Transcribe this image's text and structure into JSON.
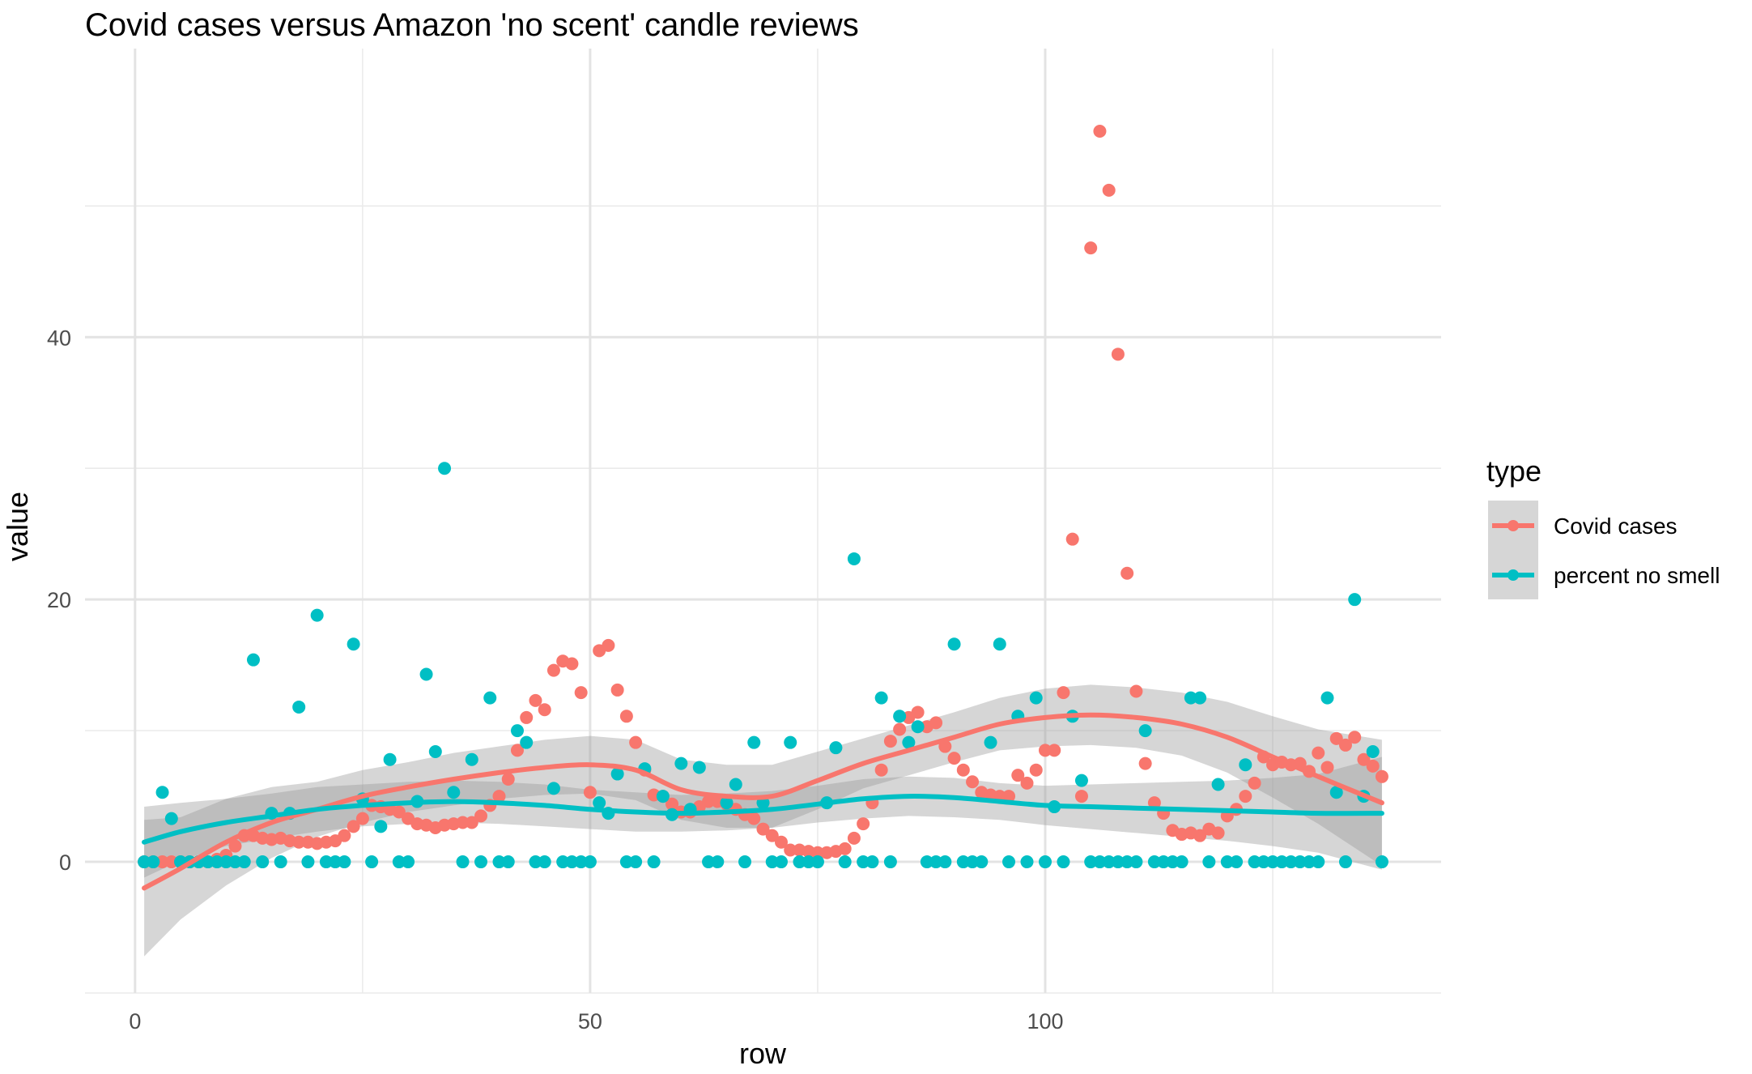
{
  "chart_data": {
    "type": "scatter",
    "title": "Covid cases versus Amazon 'no scent' candle reviews",
    "xlabel": "row",
    "ylabel": "value",
    "xlim": [
      -5.5,
      143.5
    ],
    "ylim": [
      -10,
      62
    ],
    "x_ticks": [
      0,
      50,
      100
    ],
    "x_minor_ticks": [
      25,
      75,
      125
    ],
    "y_ticks": [
      0,
      20,
      40
    ],
    "y_minor_ticks": [
      -10,
      10,
      30,
      50
    ],
    "grid": true,
    "legend": {
      "title": "type",
      "position": "right",
      "entries": [
        "Covid cases",
        "percent no smell"
      ]
    },
    "series": [
      {
        "name": "Covid cases",
        "color": "#F8766D",
        "x": [
          1,
          2,
          3,
          4,
          5,
          6,
          7,
          8,
          9,
          10,
          11,
          12,
          13,
          14,
          15,
          16,
          17,
          18,
          19,
          20,
          21,
          22,
          23,
          24,
          25,
          26,
          27,
          28,
          29,
          30,
          31,
          32,
          33,
          34,
          35,
          36,
          37,
          38,
          39,
          40,
          41,
          42,
          43,
          44,
          45,
          46,
          47,
          48,
          49,
          50,
          51,
          52,
          53,
          54,
          55,
          56,
          57,
          58,
          59,
          60,
          61,
          62,
          63,
          64,
          65,
          66,
          67,
          68,
          69,
          70,
          71,
          72,
          73,
          74,
          75,
          76,
          77,
          78,
          79,
          80,
          81,
          82,
          83,
          84,
          85,
          86,
          87,
          88,
          89,
          90,
          91,
          92,
          93,
          94,
          95,
          96,
          97,
          98,
          99,
          100,
          101,
          102,
          103,
          104,
          105,
          106,
          107,
          108,
          109,
          110,
          111,
          112,
          113,
          114,
          115,
          116,
          117,
          118,
          119,
          120,
          121,
          122,
          123,
          124,
          125,
          126,
          127,
          128,
          129,
          130,
          131,
          132,
          133,
          134,
          135,
          136,
          137
        ],
        "y": [
          0,
          0,
          0,
          0,
          0,
          0,
          0,
          0,
          0.2,
          0.5,
          1.2,
          2.0,
          2.0,
          1.8,
          1.7,
          1.8,
          1.6,
          1.5,
          1.5,
          1.4,
          1.5,
          1.6,
          2.0,
          2.7,
          3.3,
          4.3,
          4.2,
          4.0,
          3.8,
          3.3,
          2.9,
          2.8,
          2.6,
          2.8,
          2.9,
          3.0,
          3.0,
          3.5,
          4.3,
          5.0,
          6.3,
          8.5,
          11.0,
          12.3,
          11.6,
          14.6,
          15.3,
          15.1,
          12.9,
          5.3,
          16.1,
          16.5,
          13.1,
          11.1,
          9.1,
          7.0,
          5.1,
          5.0,
          4.4,
          3.8,
          3.8,
          4.2,
          4.6,
          4.6,
          4.4,
          4.0,
          3.6,
          3.3,
          2.5,
          2.0,
          1.5,
          0.9,
          0.9,
          0.8,
          0.7,
          0.7,
          0.8,
          1.0,
          1.8,
          2.9,
          4.5,
          7.0,
          9.2,
          10.1,
          11.0,
          11.4,
          10.3,
          10.6,
          8.8,
          7.9,
          7.0,
          6.1,
          5.3,
          5.1,
          5.0,
          5.0,
          6.6,
          6.0,
          7.0,
          8.5,
          8.5,
          12.9,
          24.6,
          5.0,
          46.8,
          55.7,
          51.2,
          38.7,
          22.0,
          13.0,
          7.5,
          4.5,
          3.7,
          2.4,
          2.1,
          2.2,
          2.0,
          2.5,
          2.2,
          3.5,
          4.0,
          5.0,
          6.0,
          8.0,
          7.4,
          7.6,
          7.4,
          7.5,
          6.9,
          8.3,
          7.2,
          9.4,
          8.9,
          9.5,
          7.8,
          7.3,
          6.5
        ]
      },
      {
        "name": "percent no smell",
        "color": "#00BFC4",
        "x": [
          1,
          2,
          3,
          4,
          5,
          6,
          7,
          8,
          9,
          10,
          11,
          12,
          13,
          14,
          15,
          16,
          17,
          18,
          19,
          20,
          21,
          22,
          23,
          24,
          25,
          26,
          27,
          28,
          29,
          30,
          31,
          32,
          33,
          34,
          35,
          36,
          37,
          38,
          39,
          40,
          41,
          42,
          43,
          44,
          45,
          46,
          47,
          48,
          49,
          50,
          51,
          52,
          53,
          54,
          55,
          56,
          57,
          58,
          59,
          60,
          61,
          62,
          63,
          64,
          65,
          66,
          67,
          68,
          69,
          70,
          71,
          72,
          73,
          74,
          75,
          76,
          77,
          78,
          79,
          80,
          81,
          82,
          83,
          84,
          85,
          86,
          87,
          88,
          89,
          90,
          91,
          92,
          93,
          94,
          95,
          96,
          97,
          98,
          99,
          100,
          101,
          102,
          103,
          104,
          105,
          106,
          107,
          108,
          109,
          110,
          111,
          112,
          113,
          114,
          115,
          116,
          117,
          118,
          119,
          120,
          121,
          122,
          123,
          124,
          125,
          126,
          127,
          128,
          129,
          130,
          131,
          132,
          133,
          134,
          135,
          136,
          137
        ],
        "y": [
          0,
          0,
          5.3,
          3.3,
          0,
          0,
          0,
          0,
          0,
          0,
          0,
          0,
          15.4,
          0,
          3.7,
          0,
          3.7,
          11.8,
          0,
          18.8,
          0,
          0,
          0,
          16.6,
          4.8,
          0,
          2.7,
          7.8,
          0,
          0,
          4.6,
          14.3,
          8.4,
          30.0,
          5.3,
          0,
          7.8,
          0,
          12.5,
          0,
          0,
          10.0,
          9.1,
          0,
          0,
          5.6,
          0,
          0,
          0,
          0,
          4.5,
          3.7,
          6.7,
          0,
          0,
          7.1,
          0,
          5.0,
          3.6,
          7.5,
          4.0,
          7.2,
          0,
          0,
          4.5,
          5.9,
          0,
          9.1,
          4.5,
          0,
          0,
          9.1,
          0,
          0,
          0,
          4.5,
          8.7,
          0,
          23.1,
          0,
          0,
          12.5,
          0,
          11.1,
          9.1,
          10.3,
          0,
          0,
          0,
          16.6,
          0,
          0,
          0,
          9.1,
          16.6,
          0,
          11.1,
          0,
          12.5,
          0,
          4.2,
          0,
          11.1,
          6.2,
          0,
          0,
          0,
          0,
          0,
          0,
          10.0,
          0,
          0,
          0,
          0,
          12.5,
          12.5,
          0,
          5.9,
          0,
          0,
          7.4,
          0,
          0,
          0,
          0,
          0,
          0,
          0,
          0,
          12.5,
          5.3,
          0,
          20.0,
          5.0,
          8.4,
          0
        ]
      }
    ],
    "smooth": [
      {
        "name": "Covid cases",
        "x": [
          1,
          5,
          10,
          15,
          20,
          25,
          30,
          35,
          40,
          45,
          50,
          55,
          60,
          65,
          70,
          75,
          80,
          85,
          90,
          95,
          100,
          105,
          110,
          115,
          120,
          125,
          130,
          137
        ],
        "y": [
          -2.0,
          -0.5,
          1.5,
          3.0,
          4.0,
          5.0,
          5.7,
          6.3,
          6.8,
          7.2,
          7.4,
          7.0,
          5.5,
          5.0,
          5.0,
          6.2,
          7.5,
          8.5,
          9.5,
          10.5,
          11.0,
          11.2,
          11.0,
          10.5,
          9.5,
          8.0,
          6.5,
          4.5
        ],
        "ci_low": [
          -7.2,
          -4.4,
          -1.8,
          0.3,
          1.9,
          3.0,
          3.8,
          4.3,
          4.8,
          5.1,
          5.2,
          4.7,
          3.2,
          2.6,
          2.6,
          4.0,
          5.6,
          6.6,
          7.6,
          8.5,
          8.8,
          8.9,
          8.7,
          8.1,
          6.8,
          4.9,
          2.9,
          -0.3
        ],
        "ci_high": [
          3.2,
          3.4,
          4.8,
          5.7,
          6.1,
          7.0,
          7.6,
          8.3,
          8.8,
          9.3,
          9.6,
          9.3,
          7.8,
          7.4,
          7.4,
          8.4,
          9.4,
          10.4,
          11.4,
          12.5,
          13.2,
          13.5,
          13.3,
          12.9,
          12.2,
          11.1,
          10.1,
          9.3
        ]
      },
      {
        "name": "percent no smell",
        "x": [
          1,
          5,
          10,
          15,
          20,
          25,
          30,
          35,
          40,
          45,
          50,
          55,
          60,
          65,
          70,
          75,
          80,
          85,
          90,
          95,
          100,
          105,
          110,
          115,
          120,
          125,
          130,
          137
        ],
        "y": [
          1.5,
          2.3,
          3.0,
          3.5,
          4.0,
          4.3,
          4.5,
          4.6,
          4.5,
          4.3,
          4.0,
          3.8,
          3.7,
          3.8,
          4.0,
          4.4,
          4.8,
          5.0,
          4.9,
          4.6,
          4.3,
          4.2,
          4.1,
          4.0,
          3.9,
          3.8,
          3.7,
          3.7
        ],
        "ci_low": [
          -1.2,
          0.1,
          1.2,
          1.8,
          2.3,
          2.7,
          2.9,
          3.0,
          2.9,
          2.7,
          2.5,
          2.3,
          2.3,
          2.4,
          2.6,
          3.0,
          3.3,
          3.5,
          3.4,
          3.2,
          2.8,
          2.5,
          2.2,
          1.9,
          1.6,
          1.2,
          0.7,
          -0.6
        ],
        "ci_high": [
          4.2,
          4.5,
          4.8,
          5.2,
          5.7,
          5.9,
          6.1,
          6.2,
          6.1,
          5.9,
          5.5,
          5.3,
          5.1,
          5.2,
          5.4,
          5.8,
          6.3,
          6.5,
          6.4,
          6.0,
          5.8,
          5.9,
          6.0,
          6.1,
          6.2,
          6.4,
          6.7,
          8.0
        ]
      }
    ]
  }
}
